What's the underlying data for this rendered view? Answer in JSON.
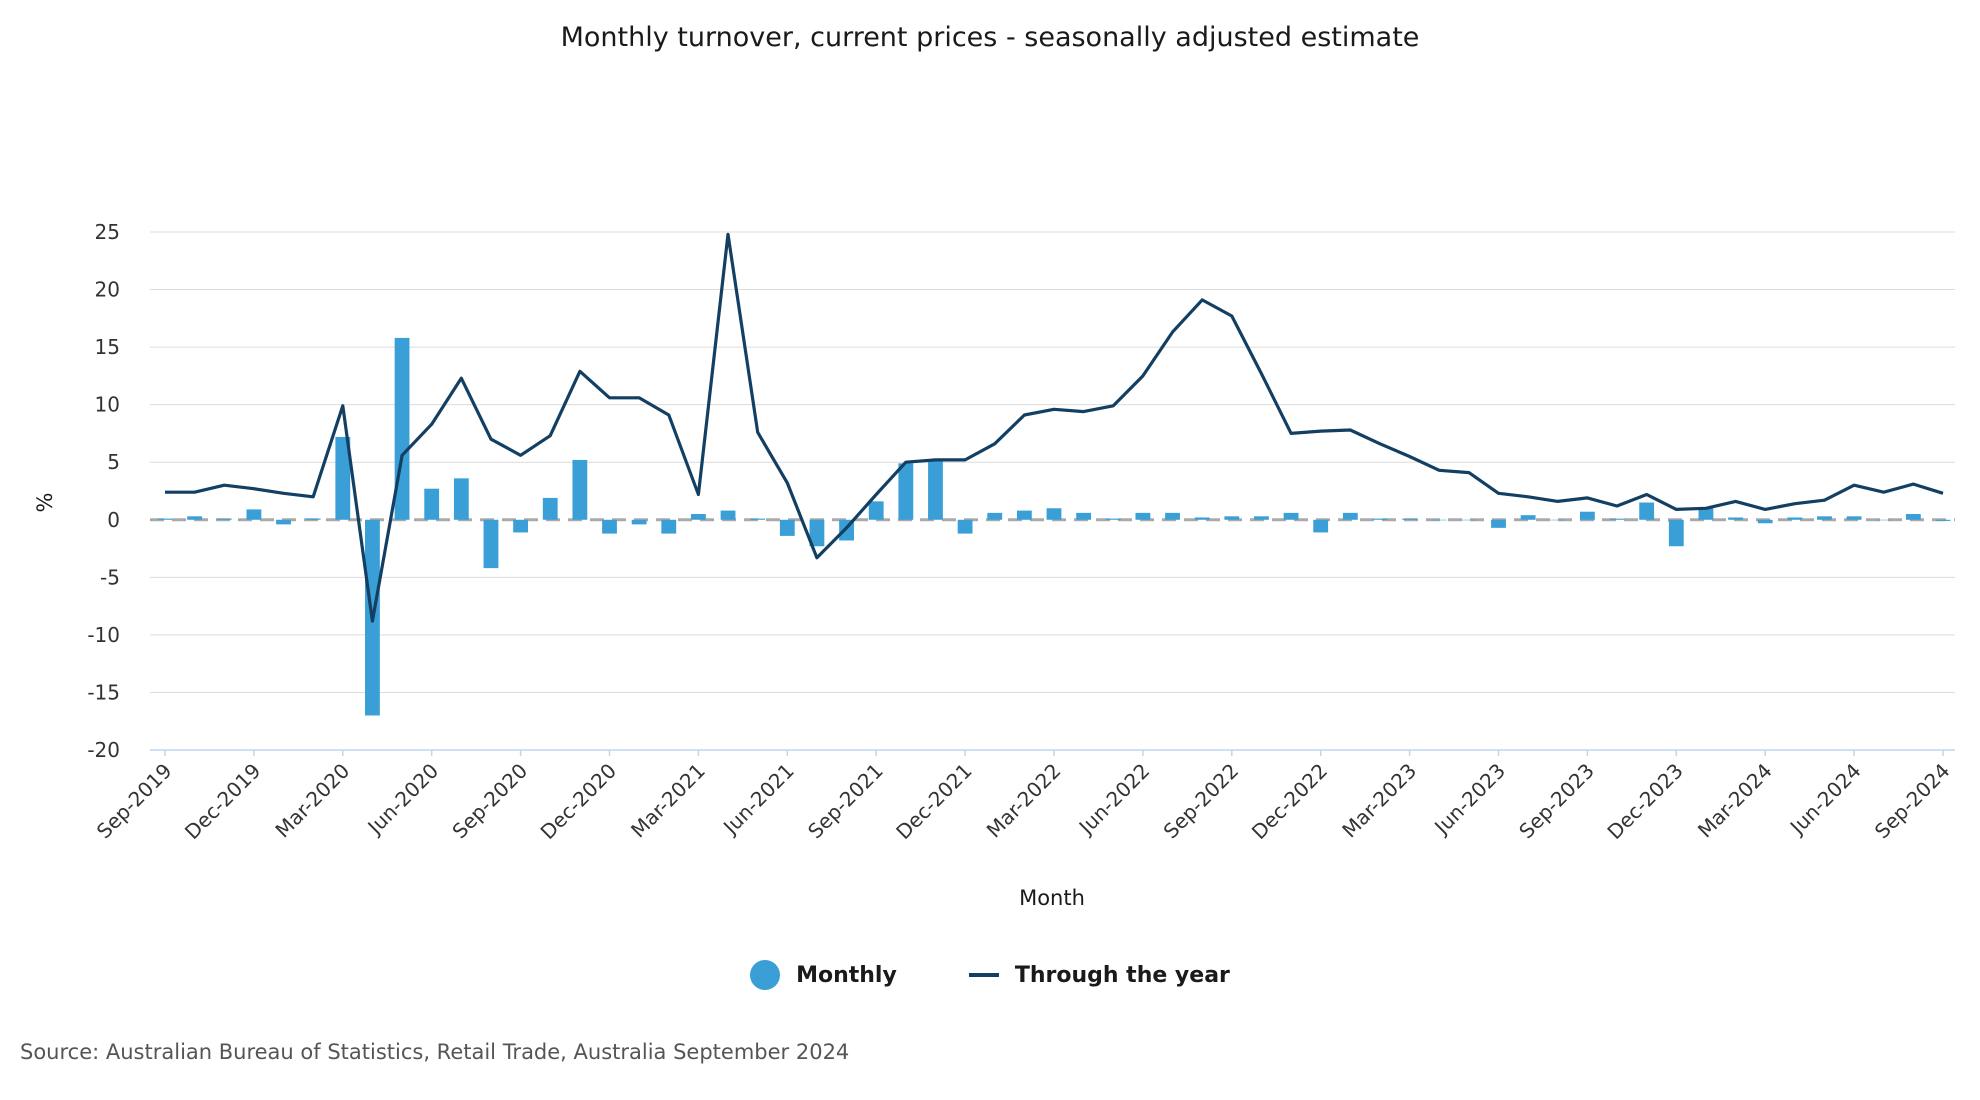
{
  "chart_data": {
    "type": "bar",
    "title": "Monthly turnover, current prices - seasonally adjusted estimate",
    "xlabel": "Month",
    "ylabel": "%",
    "ylim": [
      -20,
      25
    ],
    "yticks": [
      25,
      20,
      15,
      10,
      5,
      0,
      -5,
      -10,
      -15,
      -20
    ],
    "ytick_labels": [
      "25",
      "20",
      "15",
      "10",
      "5",
      "0",
      "-5",
      "-10",
      "-15",
      "-20"
    ],
    "x_tick_labels": [
      "Sep-2019",
      "Dec-2019",
      "Mar-2020",
      "Jun-2020",
      "Sep-2020",
      "Dec-2020",
      "Mar-2021",
      "Jun-2021",
      "Sep-2021",
      "Dec-2021",
      "Mar-2022",
      "Jun-2022",
      "Sep-2022",
      "Dec-2022",
      "Mar-2023",
      "Jun-2023",
      "Sep-2023",
      "Dec-2023",
      "Mar-2024",
      "Jun-2024",
      "Sep-2024"
    ],
    "legend_position": "bottom",
    "grid": true,
    "series": [
      {
        "name": "Monthly",
        "kind": "bar",
        "color": "#3a9fd6",
        "values": [
          0.1,
          0.3,
          0.1,
          0.9,
          -0.4,
          0.1,
          7.2,
          -17.0,
          15.8,
          2.7,
          3.6,
          -4.2,
          -1.1,
          1.9,
          5.2,
          -1.2,
          -0.4,
          -1.2,
          0.5,
          0.8,
          0.1,
          -1.4,
          -2.3,
          -1.8,
          1.6,
          4.9,
          5.2,
          -1.2,
          0.6,
          0.8,
          1.0,
          0.6,
          0.1,
          0.6,
          0.6,
          0.2,
          0.3,
          0.3,
          0.6,
          -1.1,
          0.6,
          0.1,
          0.1,
          0.0,
          0.0,
          -0.7,
          0.4,
          0.0,
          0.7,
          0.1,
          1.5,
          -2.3,
          1.0,
          0.2,
          -0.3,
          0.2,
          0.3,
          0.3,
          0.0,
          0.5,
          -0.1
        ]
      },
      {
        "name": "Through the year",
        "kind": "line",
        "color": "#133f63",
        "values": [
          2.4,
          2.4,
          3.0,
          2.7,
          2.3,
          2.0,
          9.9,
          -8.8,
          5.6,
          8.3,
          12.3,
          7.0,
          5.6,
          7.3,
          12.9,
          10.6,
          10.6,
          9.1,
          2.2,
          24.8,
          7.6,
          3.2,
          -3.3,
          -0.7,
          2.2,
          5.0,
          5.2,
          5.2,
          6.6,
          9.1,
          9.6,
          9.4,
          9.9,
          12.5,
          16.3,
          19.1,
          17.7,
          12.7,
          7.5,
          7.7,
          7.8,
          6.6,
          5.5,
          4.3,
          4.1,
          2.3,
          2.0,
          1.6,
          1.9,
          1.2,
          2.2,
          0.9,
          1.0,
          1.6,
          0.9,
          1.4,
          1.7,
          3.0,
          2.4,
          3.1,
          2.3
        ]
      }
    ]
  },
  "legend": {
    "monthly_label": "Monthly",
    "through_year_label": "Through the year"
  },
  "source": "Source: Australian Bureau of Statistics, Retail Trade, Australia September 2024"
}
